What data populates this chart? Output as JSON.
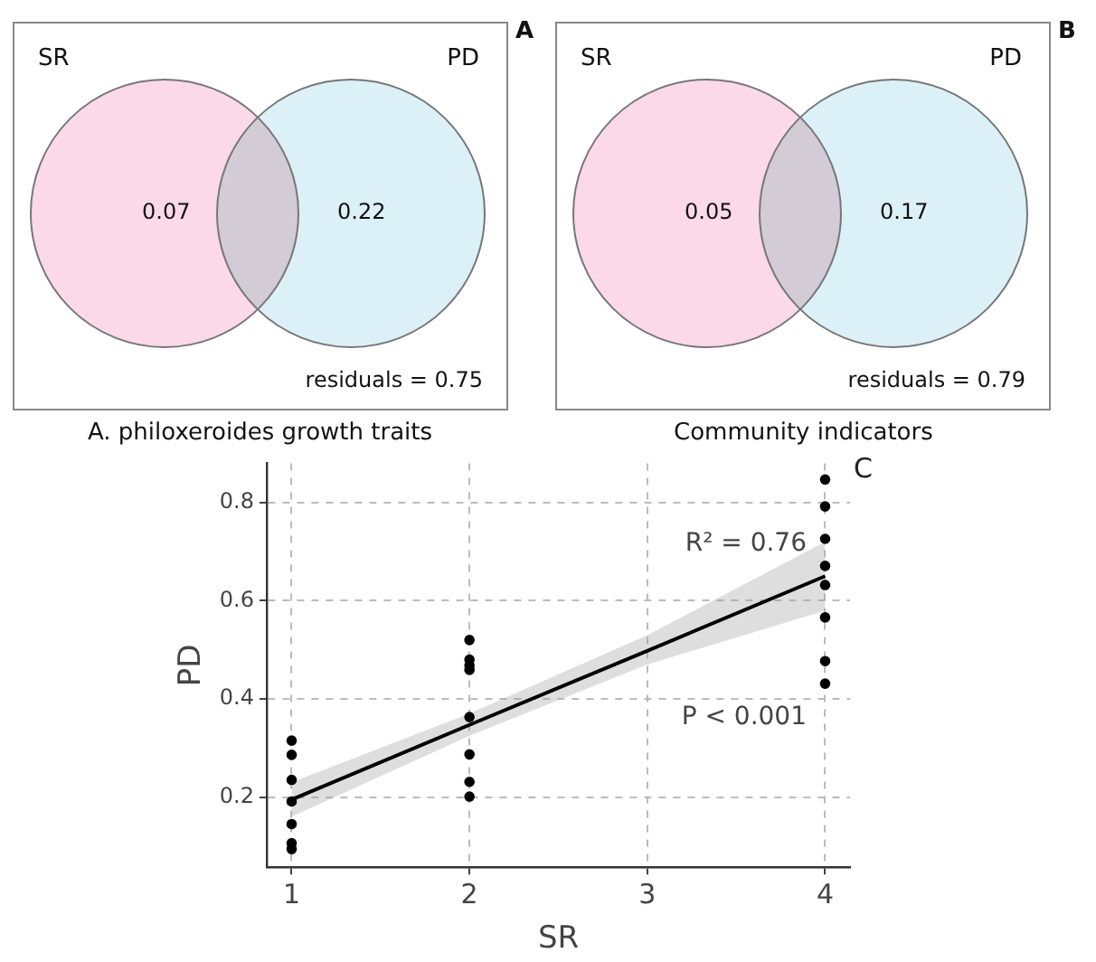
{
  "chart_data": [
    {
      "type": "other",
      "title": "A",
      "xlabel": "A. philoxeroides growth traits",
      "categories": [
        "SR",
        "PD"
      ],
      "values": [
        0.07,
        0.22
      ],
      "colors": [
        "#fcd9e8",
        "#dcf0f7"
      ],
      "data_labels": true,
      "annotations": [
        "residuals = 0.75"
      ]
    },
    {
      "type": "other",
      "title": "B",
      "xlabel": "Community indicators",
      "categories": [
        "SR",
        "PD"
      ],
      "values": [
        0.05,
        0.17
      ],
      "colors": [
        "#fcd9e8",
        "#dcf0f7"
      ],
      "data_labels": true,
      "annotations": [
        "residuals = 0.79"
      ]
    },
    {
      "type": "scatter",
      "title": "C",
      "xlabel": "SR",
      "ylabel": "PD",
      "xlim": [
        0.86,
        4.14
      ],
      "ylim": [
        0.057,
        0.88
      ],
      "xticks": [
        1,
        2,
        3,
        4
      ],
      "yticks": [
        0.2,
        0.4,
        0.6,
        0.8
      ],
      "grid": true,
      "legend": false,
      "annotations": [
        "R² = 0.76",
        "P < 0.001"
      ],
      "series": [
        {
          "type": "scatter",
          "color": "#000000",
          "marker": "circle",
          "x": [
            1,
            1,
            1,
            1,
            1,
            1,
            1,
            2,
            2,
            2,
            2,
            2,
            2,
            2,
            2,
            4,
            4,
            4,
            4,
            4,
            4,
            4,
            4
          ],
          "values": [
            0.315,
            0.286,
            0.235,
            0.191,
            0.145,
            0.106,
            0.094,
            0.52,
            0.48,
            0.468,
            0.459,
            0.363,
            0.287,
            0.231,
            0.201,
            0.847,
            0.792,
            0.726,
            0.671,
            0.632,
            0.566,
            0.477,
            0.431
          ]
        },
        {
          "type": "line",
          "color": "#000000",
          "x": [
            1,
            2,
            3,
            4
          ],
          "values": [
            0.195,
            0.347,
            0.498,
            0.65
          ],
          "lower": [
            0.16,
            0.325,
            0.47,
            0.58
          ],
          "upper": [
            0.23,
            0.37,
            0.53,
            0.72
          ]
        }
      ]
    }
  ]
}
